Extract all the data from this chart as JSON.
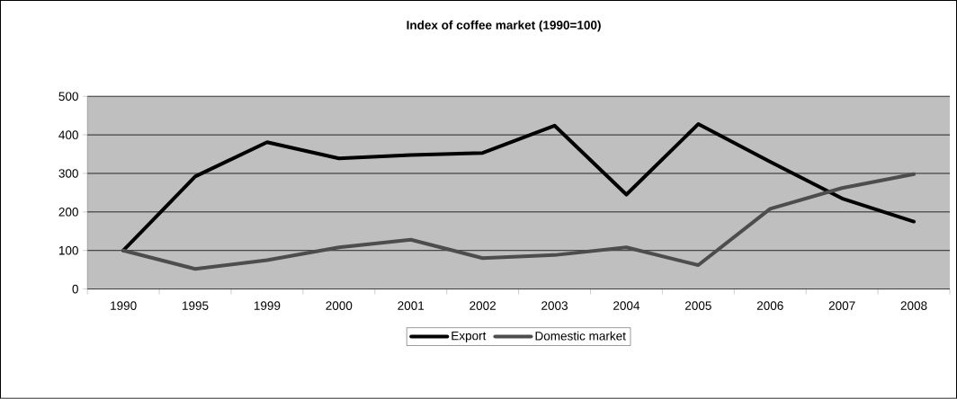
{
  "chart_data": {
    "type": "line",
    "title": "Index of coffee market (1990=100)",
    "categories": [
      "1990",
      "1995",
      "1999",
      "2000",
      "2001",
      "2002",
      "2003",
      "2004",
      "2005",
      "2006",
      "2007",
      "2008"
    ],
    "series": [
      {
        "name": "Export",
        "color": "#000000",
        "values": [
          100,
          292,
          381,
          339,
          348,
          353,
          424,
          245,
          428,
          330,
          235,
          175
        ]
      },
      {
        "name": "Domestic market",
        "color": "#4d4d4d",
        "values": [
          100,
          52,
          75,
          108,
          128,
          80,
          88,
          108,
          62,
          208,
          262,
          298
        ]
      }
    ],
    "ylim": [
      0,
      500
    ],
    "yticks": [
      0,
      100,
      200,
      300,
      400,
      500
    ],
    "grid": "y",
    "legend": "bottom",
    "marker": "none",
    "line_style": "solid"
  }
}
